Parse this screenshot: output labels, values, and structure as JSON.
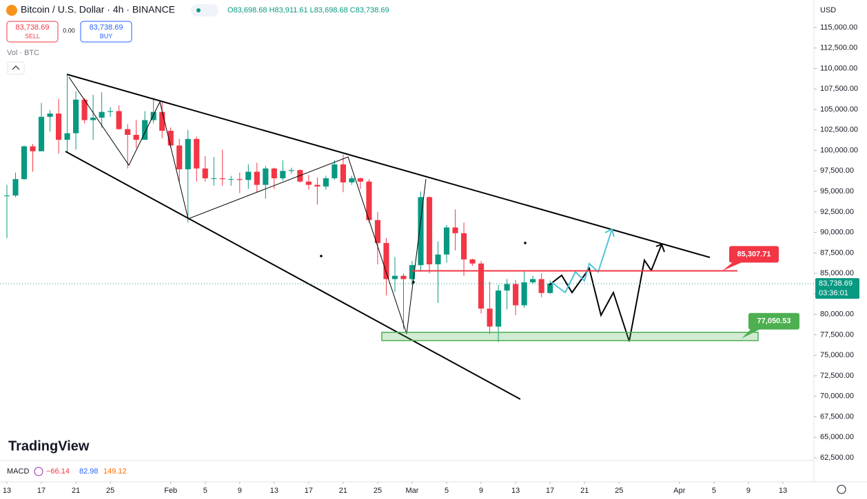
{
  "header": {
    "symbol": "Bitcoin / U.S. Dollar · 4h · BINANCE",
    "ohlc": "O83,698.68 H83,911.61 L83,698.68 C83,738.69",
    "sell_price": "83,738.69",
    "sell_label": "SELL",
    "spread": "0.00",
    "buy_price": "83,738.69",
    "buy_label": "BUY",
    "volume_label": "Vol · BTC",
    "currency": "USD",
    "last_price": "83,738.69",
    "countdown": "03:36:01",
    "logo": "TradingView"
  },
  "macd": {
    "name": "MACD",
    "values": [
      "−66.14",
      "82.98",
      "149.12"
    ]
  },
  "chart_data": {
    "type": "candlestick",
    "x": [
      0,
      1,
      2,
      3,
      4,
      5,
      6,
      7,
      8,
      9,
      10,
      11,
      12,
      13,
      14,
      15,
      16,
      17,
      18,
      19,
      20,
      21,
      22,
      23,
      24,
      25,
      26,
      27,
      28,
      29,
      30,
      31,
      32,
      33,
      34,
      35,
      36,
      37,
      38,
      39,
      40,
      41,
      42,
      43,
      44,
      45,
      46,
      47,
      48,
      49,
      50,
      51,
      52,
      53,
      54,
      55,
      56,
      57,
      58,
      59,
      60,
      61,
      62,
      63
    ],
    "open": [
      94500,
      94500,
      96500,
      100500,
      99900,
      104100,
      104500,
      101300,
      102100,
      106200,
      103700,
      104000,
      104700,
      104800,
      102600,
      101900,
      101300,
      103700,
      104700,
      102400,
      100600,
      97700,
      101400,
      97800,
      96600,
      96600,
      96500,
      96500,
      96400,
      97400,
      95800,
      97800,
      96600,
      97500,
      97600,
      96200,
      95800,
      95600,
      96600,
      98300,
      96100,
      96600,
      96200,
      91500,
      88700,
      84300,
      84700,
      84300,
      86000,
      94300,
      86100,
      87300,
      90600,
      89900,
      86700,
      86200,
      80700,
      78500,
      82900,
      83700,
      81100,
      83900,
      84300,
      82600
    ],
    "high": [
      95800,
      97300,
      100600,
      100800,
      105800,
      104900,
      106300,
      109300,
      107200,
      106400,
      106800,
      107100,
      105300,
      105500,
      103200,
      103700,
      104800,
      106400,
      106000,
      102800,
      101400,
      102500,
      101700,
      99300,
      99200,
      100100,
      96900,
      97300,
      98300,
      98500,
      98100,
      97900,
      98800,
      97900,
      97700,
      97000,
      96700,
      96900,
      98800,
      99500,
      96900,
      96700,
      96500,
      92500,
      89300,
      87000,
      85000,
      86500,
      95000,
      94400,
      88900,
      90900,
      92800,
      91200,
      86800,
      86500,
      84000,
      83600,
      84300,
      84200,
      85300,
      84700,
      85000,
      84100
    ],
    "low": [
      89300,
      94300,
      96400,
      97400,
      99900,
      102300,
      99600,
      99700,
      100100,
      103300,
      101300,
      102800,
      104100,
      102500,
      97800,
      100300,
      101300,
      103300,
      101500,
      100300,
      96200,
      91200,
      96200,
      96200,
      95700,
      95700,
      95700,
      94800,
      95300,
      94900,
      94100,
      95300,
      96300,
      97200,
      96100,
      95200,
      93400,
      95200,
      96400,
      94900,
      95800,
      95300,
      91200,
      86100,
      82300,
      82700,
      78200,
      83600,
      85200,
      85000,
      81400,
      86300,
      87800,
      84700,
      85900,
      80100,
      77600,
      76600,
      80600,
      79900,
      80800,
      83700,
      82100,
      82500
    ],
    "close": [
      94500,
      96500,
      100500,
      99900,
      104100,
      104500,
      101300,
      102100,
      106200,
      103700,
      104000,
      104700,
      104800,
      102600,
      101900,
      101300,
      103700,
      104700,
      102400,
      100600,
      97700,
      101400,
      97800,
      96600,
      96600,
      96500,
      96500,
      96400,
      97400,
      95800,
      97800,
      96600,
      97500,
      97600,
      96200,
      95800,
      95600,
      96600,
      98300,
      96100,
      96600,
      96200,
      91500,
      88700,
      84300,
      84700,
      84300,
      86000,
      94300,
      86100,
      87300,
      90600,
      89900,
      86700,
      86200,
      80700,
      78500,
      82900,
      83700,
      81100,
      83900,
      84300,
      82600,
      83738.69
    ],
    "up_color": "#089981",
    "down_color": "#f23645",
    "xlim": [
      -0.8,
      93.6
    ],
    "xticks": [
      {
        "value": 0,
        "label": "13"
      },
      {
        "value": 4,
        "label": "17"
      },
      {
        "value": 8,
        "label": "21"
      },
      {
        "value": 12,
        "label": "25"
      },
      {
        "value": 19,
        "label": "Feb"
      },
      {
        "value": 23,
        "label": "5"
      },
      {
        "value": 27,
        "label": "9"
      },
      {
        "value": 31,
        "label": "13"
      },
      {
        "value": 35,
        "label": "17"
      },
      {
        "value": 39,
        "label": "21"
      },
      {
        "value": 43,
        "label": "25"
      },
      {
        "value": 47,
        "label": "Mar"
      },
      {
        "value": 51,
        "label": "5"
      },
      {
        "value": 55,
        "label": "9"
      },
      {
        "value": 59,
        "label": "13"
      },
      {
        "value": 63,
        "label": "17"
      },
      {
        "value": 67,
        "label": "21"
      },
      {
        "value": 71,
        "label": "25"
      },
      {
        "value": 78,
        "label": "Apr"
      },
      {
        "value": 82,
        "label": "5"
      },
      {
        "value": 86,
        "label": "9"
      },
      {
        "value": 90,
        "label": "13"
      }
    ],
    "ylim": [
      59560,
      118360
    ],
    "yticks": [
      {
        "value": 62500,
        "label": "62,500.00"
      },
      {
        "value": 65000,
        "label": "65,000.00"
      },
      {
        "value": 67500,
        "label": "67,500.00"
      },
      {
        "value": 70000,
        "label": "70,000.00"
      },
      {
        "value": 72500,
        "label": "72,500.00"
      },
      {
        "value": 75000,
        "label": "75,000.00"
      },
      {
        "value": 77500,
        "label": "77,500.00"
      },
      {
        "value": 80000,
        "label": "80,000.00"
      },
      {
        "value": 82500,
        "label": "82,500.00"
      },
      {
        "value": 85000,
        "label": "85,000.00"
      },
      {
        "value": 87500,
        "label": "87,500.00"
      },
      {
        "value": 90000,
        "label": "90,000.00"
      },
      {
        "value": 92500,
        "label": "92,500.00"
      },
      {
        "value": 95000,
        "label": "95,000.00"
      },
      {
        "value": 97500,
        "label": "97,500.00"
      },
      {
        "value": 100000,
        "label": "100,000.00"
      },
      {
        "value": 102500,
        "label": "102,500.00"
      },
      {
        "value": 105000,
        "label": "105,000.00"
      },
      {
        "value": 107500,
        "label": "107,500.00"
      },
      {
        "value": 110000,
        "label": "110,000.00"
      },
      {
        "value": 112500,
        "label": "112,500.00"
      },
      {
        "value": 115000,
        "label": "115,000.00"
      }
    ],
    "last_value": 83738.69,
    "levels": [
      {
        "value": 85307.71,
        "label": "85,307.71",
        "color": "#f23645"
      },
      {
        "value": 77050.53,
        "label": "77,050.53",
        "color": "#4caf50"
      }
    ]
  }
}
